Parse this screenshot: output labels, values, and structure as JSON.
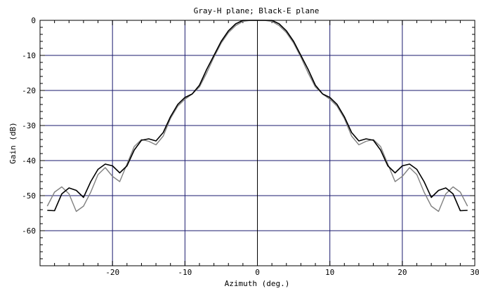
{
  "chart_data": {
    "type": "line",
    "title": "Gray-H plane; Black-E plane",
    "xlabel": "Azimuth (deg.)",
    "ylabel": "Gain (dB)",
    "xlim": [
      -30,
      30
    ],
    "ylim": [
      -70,
      0
    ],
    "x_ticks": [
      -20,
      -10,
      0,
      10,
      20,
      30
    ],
    "x_tick_labels": [
      "-20",
      "-10",
      "0",
      "10",
      "20",
      "30"
    ],
    "y_ticks": [
      0,
      -10,
      -20,
      -30,
      -40,
      -50,
      -60
    ],
    "y_tick_labels": [
      "0",
      "-10",
      "-20",
      "-30",
      "-40",
      "-50",
      "-60"
    ],
    "grid": true,
    "colors": {
      "grid": "#1a1a6e",
      "gray_series": "#808080",
      "black_series": "#000000",
      "axis": "#000000"
    },
    "series": [
      {
        "color": "gray",
        "x": [
          -29,
          -28,
          -27,
          -26,
          -25,
          -24,
          -23,
          -22,
          -21,
          -20,
          -19,
          -18,
          -17,
          -16,
          -15,
          -14,
          -13,
          -12,
          -11,
          -10,
          -9,
          -8,
          -7,
          -6,
          -5,
          -4,
          -3,
          -2,
          -1,
          0,
          1,
          2,
          3,
          4,
          5,
          6,
          7,
          8,
          9,
          10,
          11,
          12,
          13,
          14,
          15,
          16,
          17,
          18,
          19,
          20,
          21,
          22,
          23,
          24,
          25,
          26,
          27,
          28,
          29
        ],
        "y": [
          -53,
          -49,
          -47.5,
          -49.5,
          -54.5,
          -53,
          -49,
          -44,
          -42,
          -44.5,
          -46,
          -41,
          -36,
          -34,
          -34.5,
          -35.5,
          -33,
          -28,
          -24.5,
          -22.5,
          -21,
          -19,
          -15,
          -10.5,
          -6.5,
          -3.5,
          -1.5,
          -0.3,
          0,
          0,
          0,
          -0.3,
          -1.5,
          -3.5,
          -6.5,
          -10.5,
          -15,
          -19,
          -21,
          -22.5,
          -24.5,
          -28,
          -33,
          -35.5,
          -34.5,
          -34,
          -36,
          -41,
          -46,
          -44.5,
          -42,
          -44,
          -49,
          -53,
          -54.5,
          -49.5,
          -47.5,
          -49,
          -53
        ]
      },
      {
        "color": "black",
        "x": [
          -29,
          -28,
          -27,
          -26,
          -25,
          -24,
          -23,
          -22,
          -21,
          -20,
          -19,
          -18,
          -17,
          -16,
          -15,
          -14,
          -13,
          -12,
          -11,
          -10,
          -9,
          -8,
          -7,
          -6,
          -5,
          -4,
          -3,
          -2,
          -1,
          0,
          1,
          2,
          3,
          4,
          5,
          6,
          7,
          8,
          9,
          10,
          11,
          12,
          13,
          14,
          15,
          16,
          17,
          18,
          19,
          20,
          21,
          22,
          23,
          24,
          25,
          26,
          27,
          28,
          29
        ],
        "y": [
          -54.2,
          -54.3,
          -49.5,
          -47.8,
          -48.5,
          -50.5,
          -46,
          -42.5,
          -41,
          -41.5,
          -43.5,
          -41.5,
          -37,
          -34.2,
          -33.8,
          -34.4,
          -32,
          -27.5,
          -24,
          -22,
          -21,
          -18.5,
          -14,
          -10,
          -6,
          -3,
          -1,
          0,
          0,
          0,
          0,
          0,
          -1,
          -3,
          -6,
          -10,
          -14,
          -18.5,
          -21,
          -22,
          -24,
          -27.5,
          -32,
          -34.4,
          -33.8,
          -34.2,
          -37,
          -41.5,
          -43.5,
          -41.5,
          -41,
          -42.5,
          -46,
          -50.5,
          -48.5,
          -47.8,
          -49.5,
          -54.3,
          -54.2
        ]
      }
    ]
  }
}
